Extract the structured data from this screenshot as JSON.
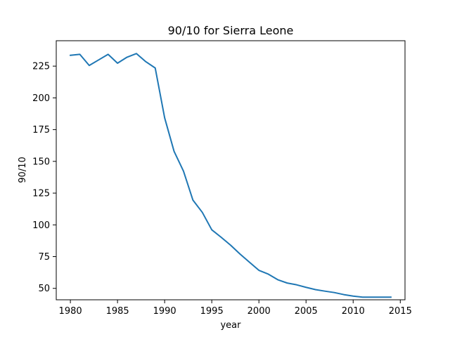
{
  "chart_data": {
    "type": "line",
    "title": "90/10 for Sierra Leone",
    "xlabel": "year",
    "ylabel": "90/10",
    "xlim": [
      1978.5,
      2015.5
    ],
    "ylim": [
      41.0,
      245.0
    ],
    "xticks": [
      1980,
      1985,
      1990,
      1995,
      2000,
      2005,
      2010,
      2015
    ],
    "yticks": [
      50,
      75,
      100,
      125,
      150,
      175,
      200,
      225
    ],
    "grid": false,
    "color": "#1f77b4",
    "series": [
      {
        "x": [
          1980,
          1981,
          1982,
          1983,
          1984,
          1985,
          1986,
          1987,
          1988,
          1989,
          1990,
          1991,
          1992,
          1993,
          1994,
          1995,
          1996,
          1997,
          1998,
          1999,
          2000,
          2001,
          2002,
          2003,
          2004,
          2005,
          2006,
          2007,
          2008,
          2009,
          2010,
          2011,
          2012,
          2013,
          2014
        ],
        "y": [
          233.5,
          234.3,
          225.5,
          229.9,
          234.3,
          227.3,
          232.0,
          234.9,
          228.5,
          223.5,
          184.3,
          157.9,
          142.3,
          119.5,
          109.8,
          96.1,
          90.2,
          84.0,
          77.0,
          70.6,
          64.2,
          61.2,
          56.8,
          54.2,
          52.8,
          50.8,
          49.0,
          47.8,
          46.7,
          45.1,
          43.9,
          43.1,
          43.1,
          43.1,
          43.1
        ]
      }
    ]
  }
}
